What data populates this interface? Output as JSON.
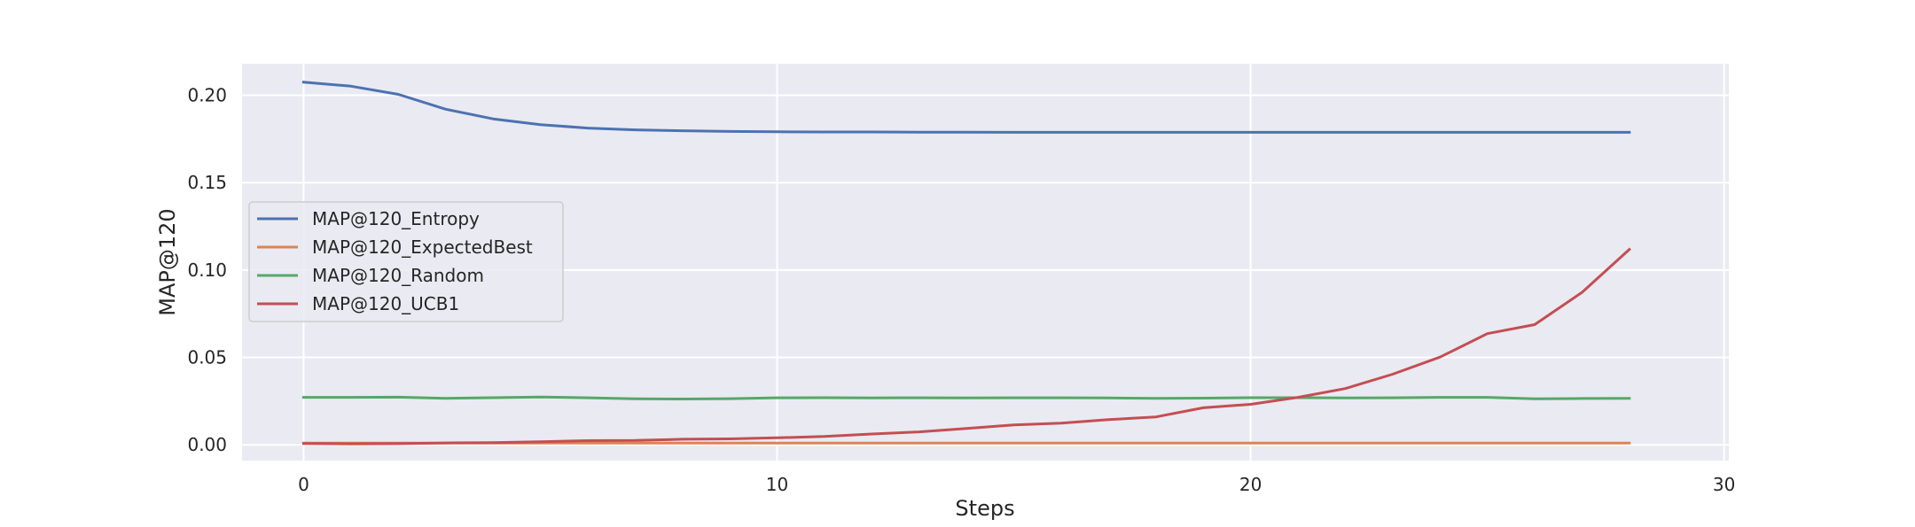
{
  "chart_data": {
    "type": "line",
    "title": "",
    "xlabel": "Steps",
    "ylabel": "MAP@120",
    "xlim": [
      -1.3,
      30.1
    ],
    "ylim": [
      -0.009,
      0.218
    ],
    "x_ticks": [
      0,
      10,
      20,
      30
    ],
    "x_tick_labels": [
      "0",
      "10",
      "20",
      "30"
    ],
    "y_ticks": [
      0.0,
      0.05,
      0.1,
      0.15,
      0.2
    ],
    "y_tick_labels": [
      "0.00",
      "0.05",
      "0.10",
      "0.15",
      "0.20"
    ],
    "grid": true,
    "legend_position": "center-left",
    "x": [
      0,
      1,
      2,
      3,
      4,
      5,
      6,
      7,
      8,
      9,
      10,
      11,
      12,
      13,
      14,
      15,
      16,
      17,
      18,
      19,
      20,
      21,
      22,
      23,
      24,
      25,
      26,
      27,
      28
    ],
    "series": [
      {
        "name": "MAP@120_Entropy",
        "color": "#4c72b0",
        "values": [
          0.2075,
          0.2052,
          0.2005,
          0.192,
          0.1865,
          0.1832,
          0.1812,
          0.1802,
          0.1797,
          0.1793,
          0.1791,
          0.179,
          0.179,
          0.1789,
          0.1789,
          0.1788,
          0.1788,
          0.1788,
          0.1788,
          0.1788,
          0.1788,
          0.1788,
          0.1788,
          0.1788,
          0.1788,
          0.1788,
          0.1788,
          0.1788,
          0.1788
        ]
      },
      {
        "name": "MAP@120_ExpectedBest",
        "color": "#dd8452",
        "values": [
          0.001,
          0.001,
          0.001,
          0.001,
          0.001,
          0.001,
          0.001,
          0.001,
          0.001,
          0.001,
          0.001,
          0.001,
          0.001,
          0.001,
          0.001,
          0.001,
          0.001,
          0.001,
          0.001,
          0.001,
          0.001,
          0.001,
          0.001,
          0.001,
          0.001,
          0.001,
          0.001,
          0.001,
          0.001
        ]
      },
      {
        "name": "MAP@120_Random",
        "color": "#55a868",
        "values": [
          0.0272,
          0.0272,
          0.0273,
          0.0266,
          0.027,
          0.0274,
          0.0269,
          0.0263,
          0.0262,
          0.0264,
          0.0269,
          0.027,
          0.0268,
          0.0269,
          0.0268,
          0.0269,
          0.0269,
          0.0268,
          0.0266,
          0.0267,
          0.027,
          0.027,
          0.0268,
          0.0269,
          0.0272,
          0.0272,
          0.0263,
          0.0265,
          0.0266
        ]
      },
      {
        "name": "MAP@120_UCB1",
        "color": "#c44e52",
        "values": [
          0.0008,
          0.0006,
          0.0007,
          0.0011,
          0.0013,
          0.0018,
          0.0024,
          0.0025,
          0.0032,
          0.0034,
          0.004,
          0.0048,
          0.0062,
          0.0074,
          0.0094,
          0.0114,
          0.0124,
          0.0144,
          0.016,
          0.0212,
          0.0232,
          0.0272,
          0.0322,
          0.0404,
          0.0502,
          0.0636,
          0.0688,
          0.0872,
          0.1118
        ]
      }
    ]
  }
}
